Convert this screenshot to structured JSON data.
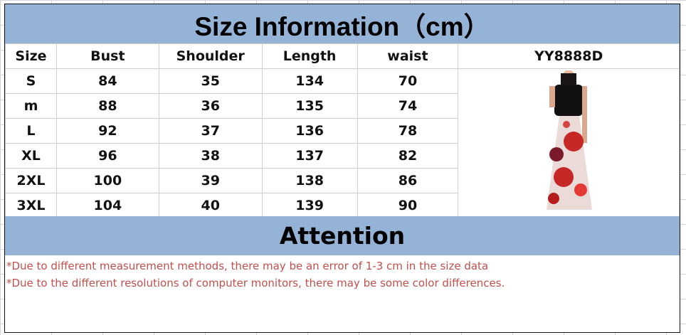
{
  "title": "Size Information（cm）",
  "columns": [
    "Size",
    "Bust",
    "Shoulder",
    "Length",
    "waist"
  ],
  "model_code": "YY8888D",
  "rows": [
    [
      "S",
      "84",
      "35",
      "134",
      "70"
    ],
    [
      "m",
      "88",
      "36",
      "135",
      "74"
    ],
    [
      "L",
      "92",
      "37",
      "136",
      "78"
    ],
    [
      "XL",
      "96",
      "38",
      "137",
      "82"
    ],
    [
      "2XL",
      "100",
      "39",
      "138",
      "86"
    ],
    [
      "3XL",
      "104",
      "40",
      "139",
      "90"
    ]
  ],
  "attention": "Attention",
  "notes": [
    "*Due to different measurement methods, there may be an error of 1-3 cm in the size data",
    "*Due to the different resolutions of computer monitors, there may be some color differences."
  ],
  "colors": {
    "band": "#95b3d7",
    "note": "#c0504d"
  }
}
